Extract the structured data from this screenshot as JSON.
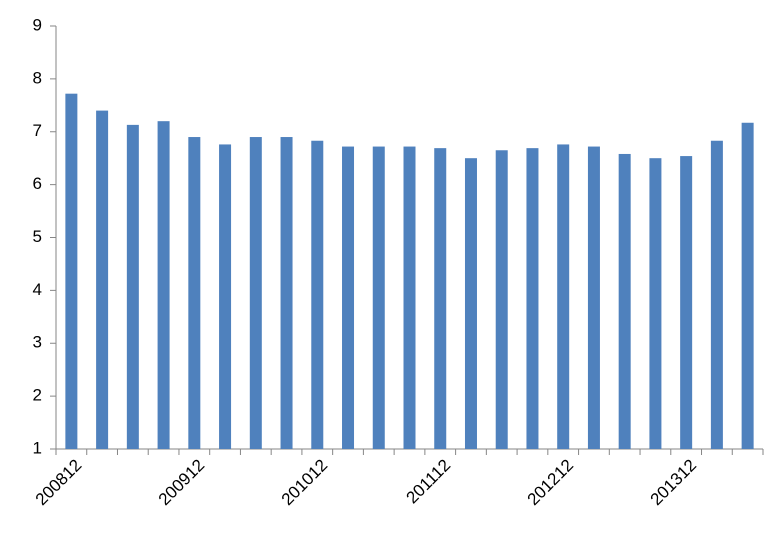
{
  "chart_data": {
    "type": "bar",
    "categories": [
      "200812",
      null,
      null,
      null,
      "200912",
      null,
      null,
      null,
      "201012",
      null,
      null,
      null,
      "201112",
      null,
      null,
      null,
      "201212",
      null,
      null,
      null,
      "201312",
      null,
      null
    ],
    "values": [
      7.72,
      7.4,
      7.13,
      7.2,
      6.9,
      6.76,
      6.9,
      6.9,
      6.83,
      6.72,
      6.72,
      6.72,
      6.69,
      6.5,
      6.65,
      6.69,
      6.76,
      6.72,
      6.58,
      6.5,
      6.54,
      6.83,
      7.17
    ],
    "color": "#4f81bd",
    "ylim": [
      1,
      9
    ],
    "yticks": [
      1,
      2,
      3,
      4,
      5,
      6,
      7,
      8,
      9
    ],
    "grid": false
  }
}
